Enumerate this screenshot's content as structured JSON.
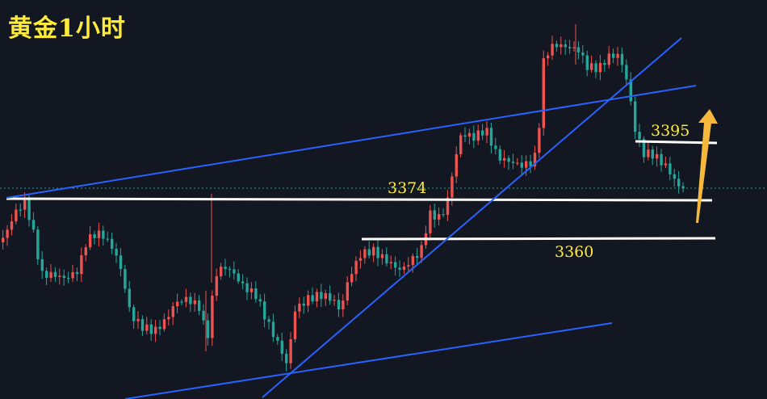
{
  "title": "黄金1小时",
  "colors": {
    "background": "#131722",
    "up": "#ef5350",
    "down": "#26a69a",
    "trendline": "#2962ff",
    "level": "#ffffff",
    "label": "#ffeb3b",
    "arrow": "#f6b93b"
  },
  "chart_data": {
    "type": "candlestick",
    "instrument": "黄金",
    "timeframe": "1小时",
    "levels": [
      {
        "label": "3395",
        "value": 3395
      },
      {
        "label": "3374",
        "value": 3374
      },
      {
        "label": "3360",
        "value": 3360
      }
    ],
    "annotations": [
      "upward arrow toward 3395"
    ],
    "close_approx": 3370,
    "price_range": [
      3326,
      3411
    ]
  }
}
